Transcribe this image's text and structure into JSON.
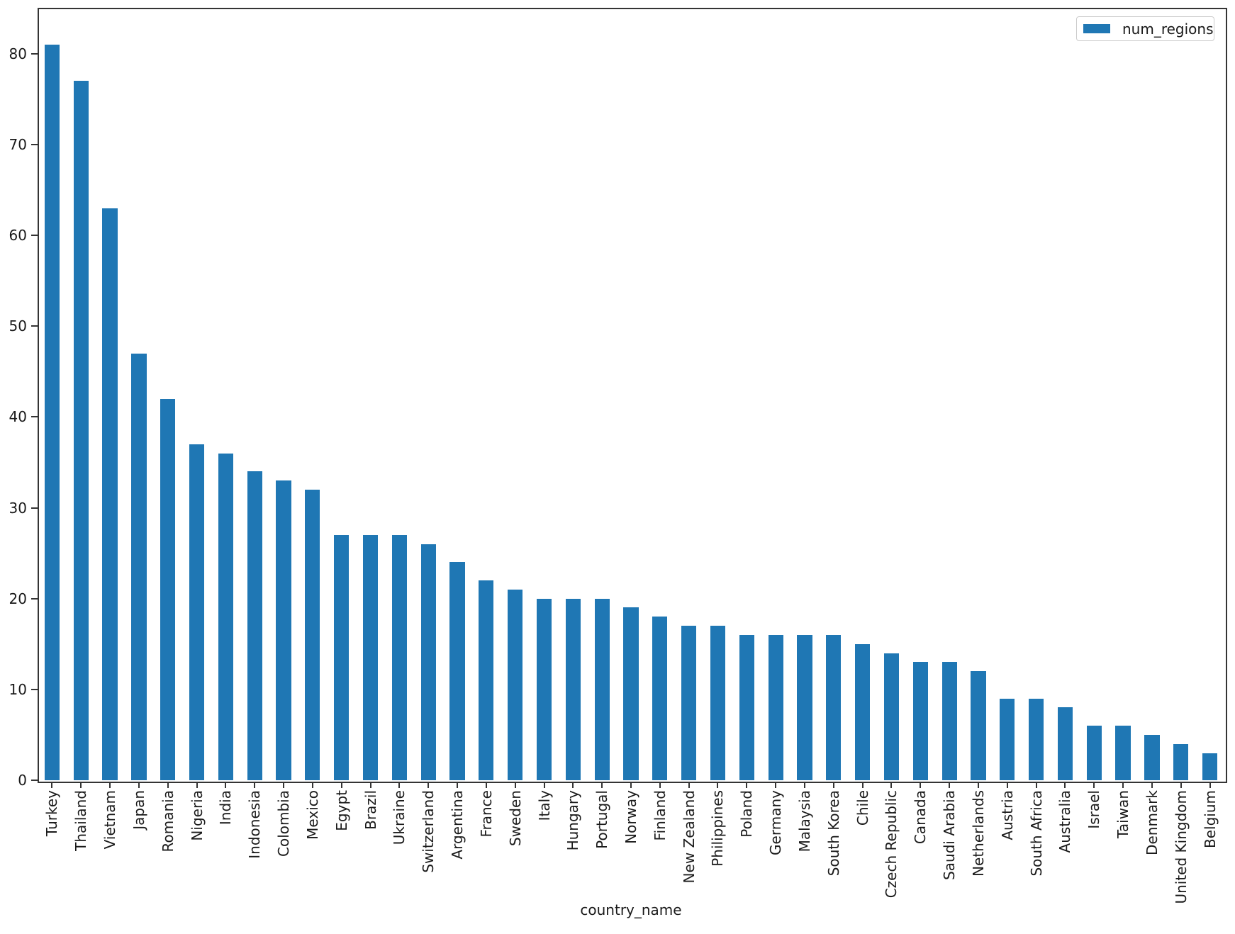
{
  "chart_data": {
    "type": "bar",
    "title": "",
    "xlabel": "country_name",
    "ylabel": "",
    "legend_entries": [
      "num_regions"
    ],
    "legend_position": "upper right",
    "grid": false,
    "bar_color": "#1f77b4",
    "axis_color": "#343434",
    "ylim": [
      0,
      85.05
    ],
    "yticks": [
      0,
      10,
      20,
      30,
      40,
      50,
      60,
      70,
      80
    ],
    "categories": [
      "Turkey",
      "Thailand",
      "Vietnam",
      "Japan",
      "Romania",
      "Nigeria",
      "India",
      "Indonesia",
      "Colombia",
      "Mexico",
      "Egypt",
      "Brazil",
      "Ukraine",
      "Switzerland",
      "Argentina",
      "France",
      "Sweden",
      "Italy",
      "Hungary",
      "Portugal",
      "Norway",
      "Finland",
      "New Zealand",
      "Philippines",
      "Poland",
      "Germany",
      "Malaysia",
      "South Korea",
      "Chile",
      "Czech Republic",
      "Canada",
      "Saudi Arabia",
      "Netherlands",
      "Austria",
      "South Africa",
      "Australia",
      "Israel",
      "Taiwan",
      "Denmark",
      "United Kingdom",
      "Belgium"
    ],
    "values": [
      81,
      77,
      63,
      47,
      42,
      37,
      36,
      34,
      33,
      32,
      27,
      27,
      27,
      26,
      24,
      22,
      21,
      20,
      20,
      20,
      19,
      18,
      17,
      17,
      16,
      16,
      16,
      16,
      15,
      14,
      13,
      13,
      12,
      9,
      9,
      8,
      6,
      6,
      5,
      4,
      3
    ]
  }
}
